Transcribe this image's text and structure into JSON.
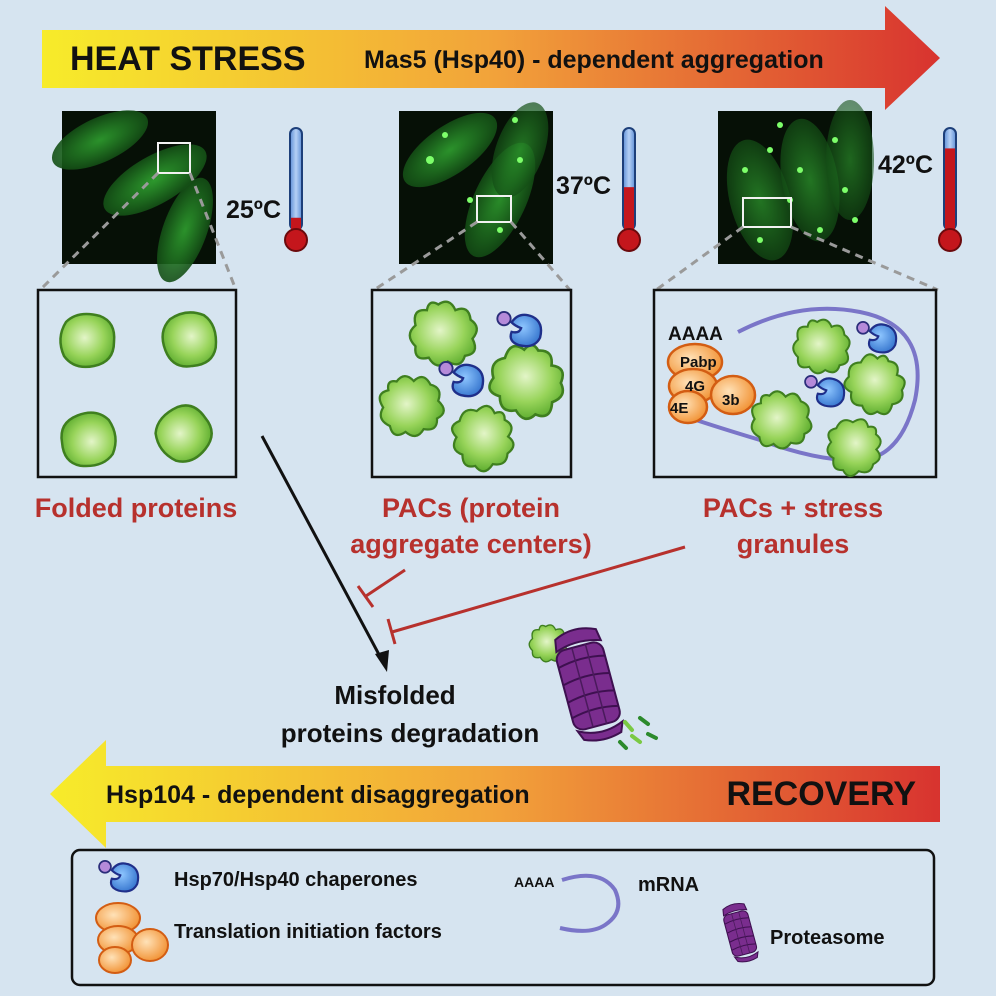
{
  "top_arrow": {
    "title": "HEAT STRESS",
    "subtitle": "Mas5 (Hsp40) - dependent aggregation"
  },
  "panels": [
    {
      "temp": "25ºC",
      "caption": [
        "Folded proteins"
      ]
    },
    {
      "temp": "37ºC",
      "caption": [
        "PACs (protein",
        "aggregate centers)"
      ]
    },
    {
      "temp": "42ºC",
      "caption": [
        "PACs + stress",
        "granules"
      ]
    }
  ],
  "thermometer_levels": [
    0.12,
    0.42,
    0.8
  ],
  "granule_labels": {
    "polyA": "AAAA",
    "pabp": "Pabp",
    "f4g": "4G",
    "f4e": "4E",
    "f3b": "3b"
  },
  "degradation": [
    "Misfolded",
    "proteins degradation"
  ],
  "bottom_arrow": {
    "subtitle": "Hsp104 - dependent disaggregation",
    "title": "RECOVERY"
  },
  "legend": {
    "chaperones": "Hsp70/Hsp40 chaperones",
    "polyA": "AAAA",
    "mrna": "mRNA",
    "translation": "Translation initiation factors",
    "proteasome": "Proteasome"
  },
  "colors": {
    "red_text": "#b7312d",
    "protein_green": "#7ac943",
    "chaperone_blue": "#3a86d8",
    "proteasome_purple": "#7a2d8e",
    "factor_orange": "#f39c3a",
    "background": "#d6e4f0"
  }
}
